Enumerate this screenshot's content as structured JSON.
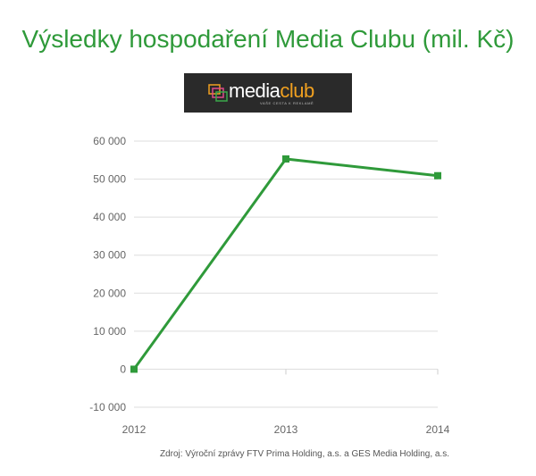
{
  "title": "Výsledky hospodaření Media Clubu (mil. Kč)",
  "logo": {
    "name_part1": "media",
    "name_part2": "club",
    "tagline": "VAŠE CESTA K REKLAMĚ",
    "background": "#2a2a2a",
    "accent_color": "#f0a020"
  },
  "chart_data": {
    "type": "line",
    "title": "Výsledky hospodaření Media Clubu (mil. Kč)",
    "x": [
      "2012",
      "2013",
      "2014"
    ],
    "series": [
      {
        "values": [
          0,
          55300,
          50900
        ],
        "color": "#2f9a3a"
      }
    ],
    "ylim": [
      -10000,
      60000
    ],
    "yticks": [
      60000,
      50000,
      40000,
      30000,
      20000,
      10000,
      0,
      -10000
    ],
    "ytick_labels": [
      "60 000",
      "50 000",
      "40 000",
      "30 000",
      "20 000",
      "10 000",
      "0",
      "-10 000"
    ],
    "grid": true,
    "legend": "none"
  },
  "source": "Zdroj: Výroční zprávy FTV Prima Holding, a.s. a GES Media Holding, a.s."
}
